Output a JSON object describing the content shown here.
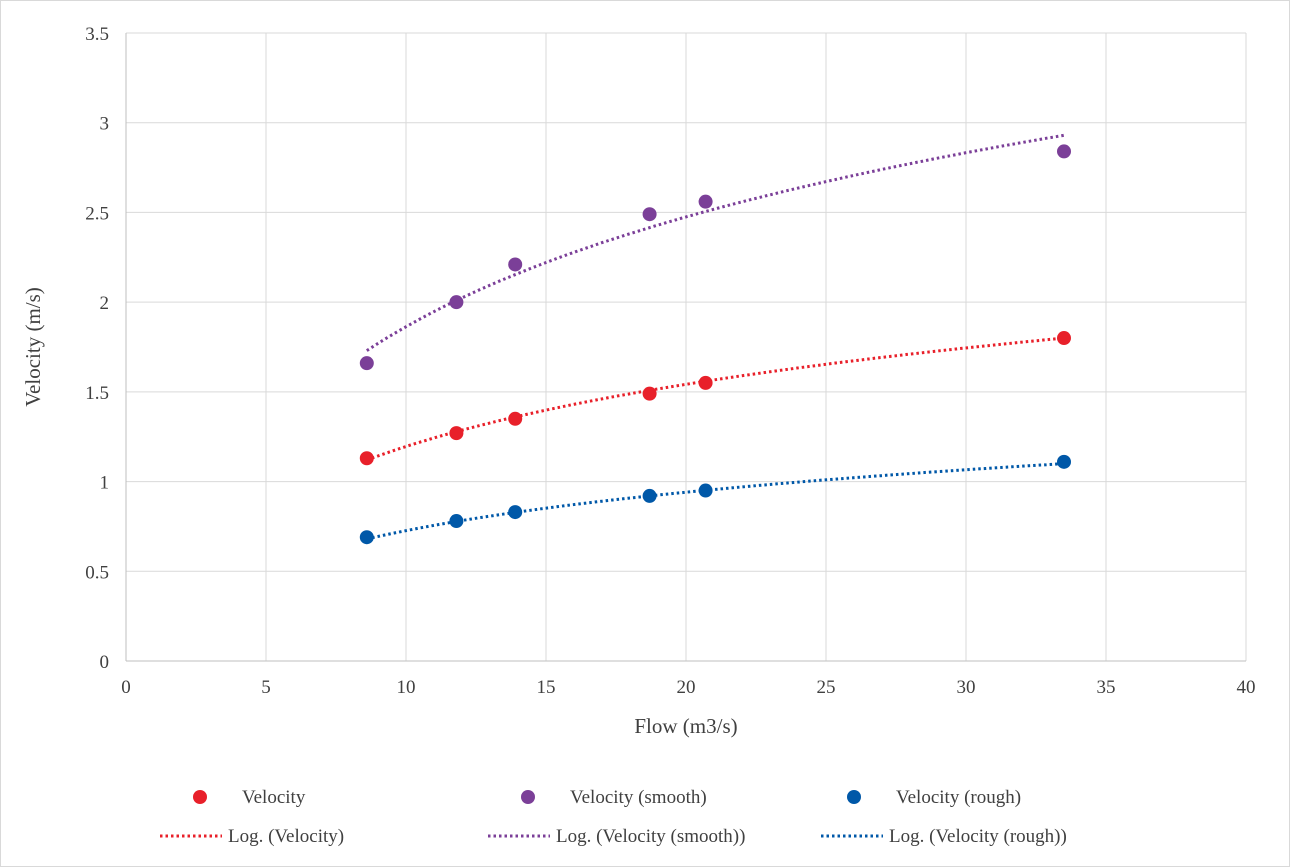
{
  "chart_data": {
    "type": "scatter",
    "xlabel": "Flow (m3/s)",
    "ylabel": "Velocity (m/s)",
    "xlim": [
      0,
      40
    ],
    "ylim": [
      0,
      3.5
    ],
    "xticks": [
      0,
      5,
      10,
      15,
      20,
      25,
      30,
      35,
      40
    ],
    "yticks": [
      0,
      0.5,
      1,
      1.5,
      2,
      2.5,
      3,
      3.5
    ],
    "xtick_labels": [
      "0",
      "5",
      "10",
      "15",
      "20",
      "25",
      "30",
      "35",
      "40"
    ],
    "ytick_labels": [
      "0",
      "0.5",
      "1",
      "1.5",
      "2",
      "2.5",
      "3",
      "3.5"
    ],
    "grid": true,
    "legend_position": "bottom",
    "series": [
      {
        "name": "Velocity",
        "color": "#e8202a",
        "x": [
          8.6,
          11.8,
          13.9,
          18.7,
          20.7,
          33.5
        ],
        "y": [
          1.13,
          1.27,
          1.35,
          1.49,
          1.55,
          1.8
        ],
        "trendline": {
          "name": "Log. (Velocity)",
          "type": "logarithmic",
          "color": "#e8202a",
          "x_range": [
            8.6,
            33.5
          ],
          "y_range": [
            1.12,
            1.8
          ]
        }
      },
      {
        "name": "Velocity (smooth)",
        "color": "#7b3f98",
        "x": [
          8.6,
          11.8,
          13.9,
          18.7,
          20.7,
          33.5
        ],
        "y": [
          1.66,
          2.0,
          2.21,
          2.49,
          2.56,
          2.84
        ],
        "trendline": {
          "name": "Log. (Velocity (smooth))",
          "type": "logarithmic",
          "color": "#7b3f98",
          "x_range": [
            8.6,
            33.5
          ],
          "y_range": [
            1.73,
            2.93
          ]
        }
      },
      {
        "name": "Velocity (rough)",
        "color": "#0058a8",
        "x": [
          8.6,
          11.8,
          13.9,
          18.7,
          20.7,
          33.5
        ],
        "y": [
          0.69,
          0.78,
          0.83,
          0.92,
          0.95,
          1.11
        ],
        "trendline": {
          "name": "Log. (Velocity (rough))",
          "type": "logarithmic",
          "color": "#0058a8",
          "x_range": [
            8.6,
            33.5
          ],
          "y_range": [
            0.68,
            1.1
          ]
        }
      }
    ]
  }
}
